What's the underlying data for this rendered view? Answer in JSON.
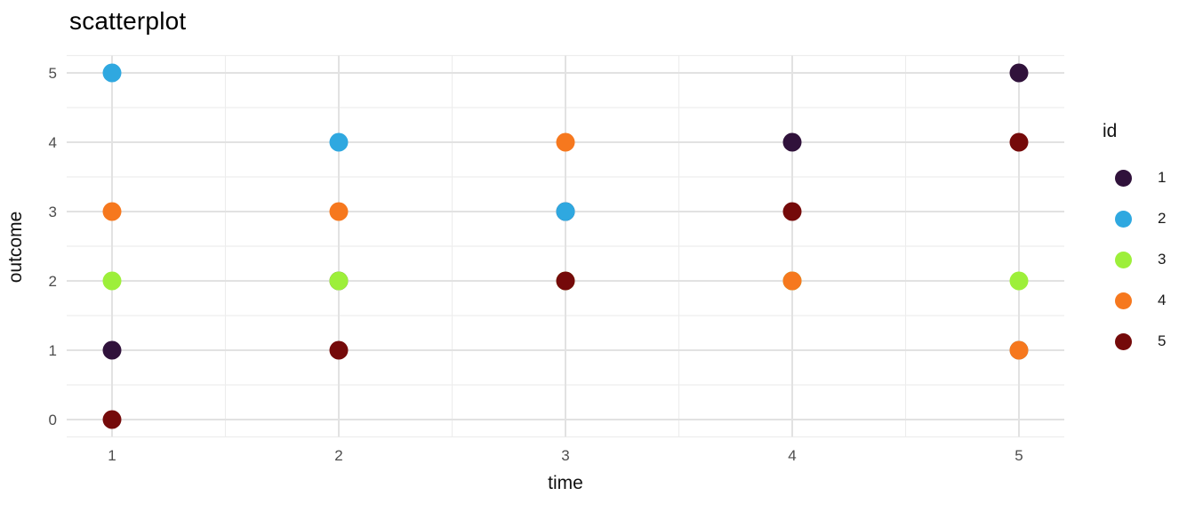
{
  "chart": {
    "title": "scatterplot",
    "xlabel": "time",
    "ylabel": "outcome",
    "legend_title": "id"
  },
  "chart_data": {
    "type": "scatter",
    "title": "scatterplot",
    "xlabel": "time",
    "ylabel": "outcome",
    "x": [
      1,
      2,
      3,
      4,
      5
    ],
    "x_ticks": [
      "1",
      "2",
      "3",
      "4",
      "5"
    ],
    "y_ticks": [
      "0",
      "1",
      "2",
      "3",
      "4",
      "5"
    ],
    "x_major": [
      1,
      2,
      3,
      4,
      5
    ],
    "x_minor": [
      1.5,
      2.5,
      3.5,
      4.5
    ],
    "y_major": [
      0,
      1,
      2,
      3,
      4,
      5
    ],
    "y_minor": [
      -0.25,
      0.5,
      1.5,
      2.5,
      3.5,
      4.5,
      5.25
    ],
    "xlim": [
      0.8,
      5.2
    ],
    "ylim": [
      -0.25,
      5.25
    ],
    "grid": "major+minor",
    "background": "#ffffff",
    "major_grid_color": "#e2e2e2",
    "minor_grid_color": "#ededed",
    "tick_label_color": "#4d4d4d",
    "legend_position": "right",
    "legend_title": "id",
    "series": [
      {
        "name": "1",
        "color": "#30123B",
        "x": [
          1,
          2,
          3,
          4,
          5
        ],
        "y": [
          1,
          2,
          3,
          4,
          5
        ]
      },
      {
        "name": "2",
        "color": "#2FA8E0",
        "x": [
          1,
          2,
          3,
          4,
          5
        ],
        "y": [
          5,
          4,
          3,
          2,
          1
        ]
      },
      {
        "name": "3",
        "color": "#9DEF3A",
        "x": [
          1,
          2,
          3,
          4,
          5
        ],
        "y": [
          2,
          2,
          2,
          2,
          2
        ]
      },
      {
        "name": "4",
        "color": "#F6781E",
        "x": [
          1,
          2,
          3,
          4,
          5
        ],
        "y": [
          3,
          3,
          4,
          2,
          1
        ]
      },
      {
        "name": "5",
        "color": "#750A0A",
        "x": [
          1,
          2,
          3,
          4,
          5
        ],
        "y": [
          0,
          1,
          2,
          3,
          4
        ]
      }
    ]
  }
}
